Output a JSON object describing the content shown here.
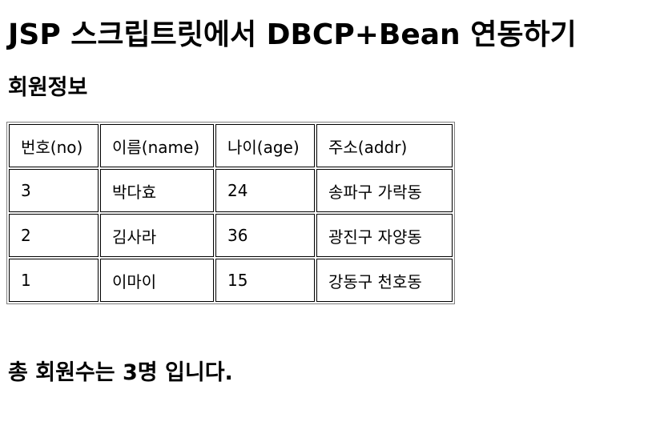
{
  "page": {
    "title": "JSP 스크립트릿에서 DBCP+Bean 연동하기",
    "section_title": "회원정보",
    "summary": "총 회원수는 3명 입니다."
  },
  "table": {
    "headers": [
      "번호(no)",
      "이름(name)",
      "나이(age)",
      "주소(addr)"
    ],
    "rows": [
      [
        "3",
        "박다효",
        "24",
        "송파구 가락동"
      ],
      [
        "2",
        "김사라",
        "36",
        "광진구 자양동"
      ],
      [
        "1",
        "이마이",
        "15",
        "강동구 천호동"
      ]
    ]
  }
}
